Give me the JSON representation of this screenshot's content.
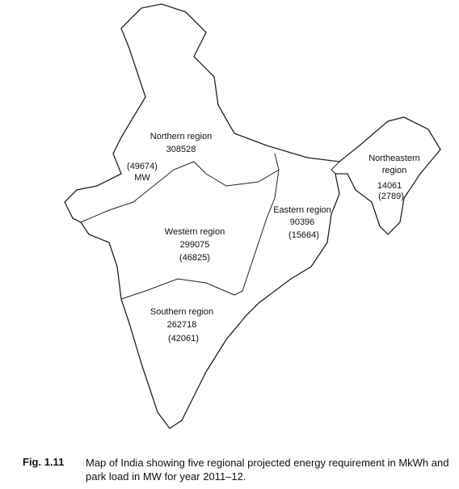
{
  "regions": [
    {
      "name": "Northern region",
      "energy": "308528",
      "load": "(49674)",
      "unit": "MW"
    },
    {
      "name": "Northeastern region",
      "energy": "14061",
      "load": "(2789)"
    },
    {
      "name": "Eastern region",
      "energy": "90396",
      "load": "(15664)"
    },
    {
      "name": "Western region",
      "energy": "299075",
      "load": "(46825)"
    },
    {
      "name": "Southern region",
      "energy": "262718",
      "load": "(42061)"
    }
  ],
  "caption": {
    "label": "Fig. 1.11",
    "text": "Map of India showing five regional projected energy requirement in MkWh and park load in MW for year 2011–12."
  }
}
